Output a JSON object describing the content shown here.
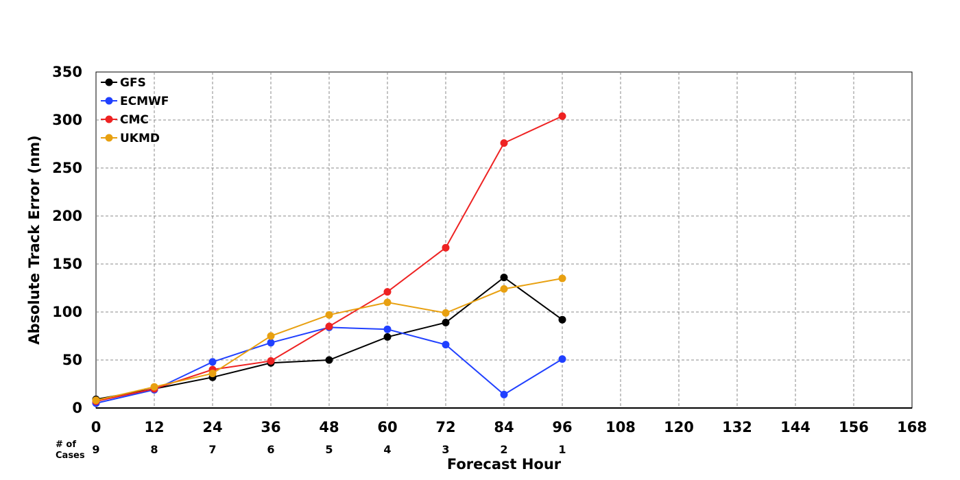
{
  "chart_data": {
    "type": "line",
    "xlabel": "Forecast Hour",
    "ylabel": "Absolute Track Error (nm)",
    "xlim": [
      0,
      168
    ],
    "ylim": [
      0,
      350
    ],
    "x_ticks": [
      0,
      12,
      24,
      36,
      48,
      60,
      72,
      84,
      96,
      108,
      120,
      132,
      144,
      156,
      168
    ],
    "y_ticks": [
      0,
      50,
      100,
      150,
      200,
      250,
      300,
      350
    ],
    "grid": true,
    "legend_position": "top-left",
    "x": [
      0,
      12,
      24,
      36,
      48,
      60,
      72,
      84,
      96
    ],
    "series": [
      {
        "name": "GFS",
        "color": "#000000",
        "values": [
          9,
          20,
          32,
          47,
          50,
          74,
          89,
          136,
          92
        ]
      },
      {
        "name": "ECMWF",
        "color": "#2040ff",
        "values": [
          5,
          19,
          48,
          68,
          84,
          82,
          66,
          14,
          51
        ]
      },
      {
        "name": "CMC",
        "color": "#ee2222",
        "values": [
          7,
          20,
          40,
          49,
          85,
          121,
          167,
          276,
          304
        ]
      },
      {
        "name": "UKMD",
        "color": "#e8a010",
        "values": [
          8,
          22,
          36,
          75,
          97,
          110,
          99,
          124,
          135
        ]
      }
    ],
    "cases_label": [
      "# of",
      "Cases"
    ],
    "cases": [
      9,
      8,
      7,
      6,
      5,
      4,
      3,
      2,
      1
    ]
  }
}
